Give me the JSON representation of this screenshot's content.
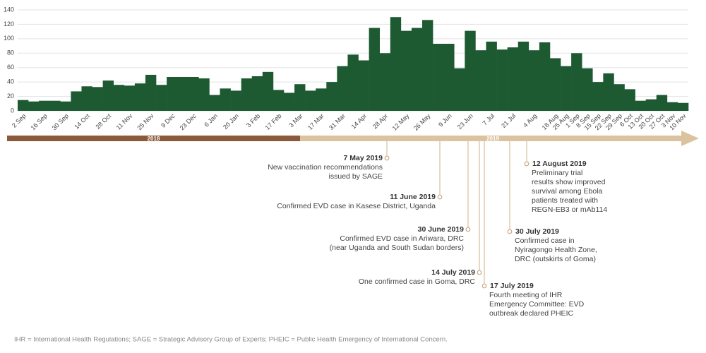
{
  "chart_data": {
    "type": "bar",
    "categories": [
      "2 Sep",
      null,
      "16 Sep",
      null,
      "30 Sep",
      null,
      "14 Oct",
      null,
      "28 Oct",
      null,
      "11 Nov",
      null,
      "25 Nov",
      null,
      "9 Dec",
      null,
      "23 Dec",
      null,
      "6 Jan",
      null,
      "20 Jan",
      null,
      "3 Feb",
      null,
      "17 Feb",
      null,
      "3 Mar",
      null,
      "17 Mar",
      null,
      "31 Mar",
      null,
      "14 Apr",
      null,
      "28 Apr",
      null,
      "12 May",
      null,
      "26 May",
      null,
      "9 Jun",
      null,
      "23 Jun",
      null,
      "7 Jul",
      null,
      "21 Jul",
      null,
      "4 Aug",
      null,
      "18 Aug",
      "25 Aug",
      "1 Sep",
      "8 Sep",
      "15 Sep",
      "22 Sep",
      "29 Sep",
      "6 Oct",
      "13 Oct",
      "20 Oct",
      "27 Oct",
      "3 Nov",
      "10 Nov"
    ],
    "values": [
      15,
      13,
      14,
      14,
      13,
      27,
      34,
      33,
      42,
      36,
      35,
      38,
      50,
      36,
      47,
      47,
      47,
      45,
      22,
      31,
      28,
      45,
      48,
      54,
      29,
      25,
      37,
      28,
      31,
      40,
      62,
      78,
      70,
      115,
      80,
      130,
      111,
      115,
      126,
      93,
      93,
      59,
      111,
      84,
      96,
      85,
      88,
      96,
      84,
      95,
      73,
      62,
      80,
      59,
      40,
      52,
      37,
      30,
      14,
      16,
      22,
      12,
      11
    ],
    "color": "#1d5a32",
    "ylim": [
      0,
      140
    ],
    "yticks": [
      0,
      20,
      40,
      60,
      80,
      100,
      120,
      140
    ],
    "grid": true
  },
  "timeline": {
    "years": [
      "2018",
      "2019"
    ],
    "colors": [
      "#8b5a3a",
      "#dcc3a0"
    ]
  },
  "annotations": [
    {
      "date": "7 May 2019",
      "lines": [
        "New vaccination recommendations",
        "issued by SAGE"
      ]
    },
    {
      "date": "11 June 2019",
      "lines": [
        "Confirmed EVD case in Kasese District, Uganda"
      ]
    },
    {
      "date": "30 June 2019",
      "lines": [
        "Confirmed EVD case in Ariwara, DRC",
        "(near Uganda and South Sudan borders)"
      ]
    },
    {
      "date": "14 July 2019",
      "lines": [
        "One confirmed case in Goma, DRC"
      ]
    },
    {
      "date": "17 July 2019",
      "lines": [
        "Fourth meeting of IHR",
        "Emergency Committee: EVD",
        "outbreak declared PHEIC"
      ]
    },
    {
      "date": "30 July 2019",
      "lines": [
        "Confirmed case in",
        "Nyiragongo Health Zone,",
        "DRC (outskirts of Goma)"
      ]
    },
    {
      "date": "12 August 2019",
      "lines": [
        "Preliminary trial",
        "results show improved",
        "survival among Ebola",
        "patients treated with",
        "REGN-EB3 or mAb114"
      ]
    }
  ],
  "footnote": "IHR = International Health Regulations; SAGE = Strategic Advisory Group of Experts; PHEIC = Public Health Emergency of International Concern."
}
